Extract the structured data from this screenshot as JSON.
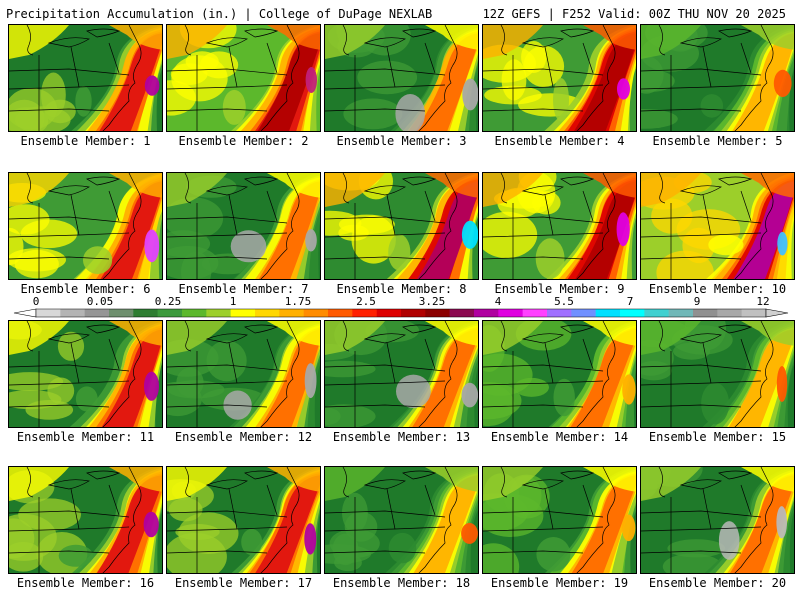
{
  "header": {
    "title": "Precipitation Accumulation (in.) | College of DuPage NEXLAB",
    "run_info": "12Z GEFS | F252 Valid: 00Z THU NOV 20 2025"
  },
  "members": [
    {
      "label": "Ensemble Member: 1",
      "style": "orange-east"
    },
    {
      "label": "Ensemble Member: 2",
      "style": "red-northeast"
    },
    {
      "label": "Ensemble Member: 3",
      "style": "green-gray"
    },
    {
      "label": "Ensemble Member: 4",
      "style": "red-heavy"
    },
    {
      "label": "Ensemble Member: 5",
      "style": "green-heavy"
    },
    {
      "label": "Ensemble Member: 6",
      "style": "yellow-purple"
    },
    {
      "label": "Ensemble Member: 7",
      "style": "green-gray"
    },
    {
      "label": "Ensemble Member: 8",
      "style": "yellow-cyan"
    },
    {
      "label": "Ensemble Member: 9",
      "style": "red-heavy"
    },
    {
      "label": "Ensemble Member: 10",
      "style": "orange-cyan"
    },
    {
      "label": "Ensemble Member: 11",
      "style": "orange-east"
    },
    {
      "label": "Ensemble Member: 12",
      "style": "green-gray"
    },
    {
      "label": "Ensemble Member: 13",
      "style": "green-gray"
    },
    {
      "label": "Ensemble Member: 14",
      "style": "green-yellow"
    },
    {
      "label": "Ensemble Member: 15",
      "style": "green-heavy"
    },
    {
      "label": "Ensemble Member: 16",
      "style": "orange-east"
    },
    {
      "label": "Ensemble Member: 17",
      "style": "orange-east"
    },
    {
      "label": "Ensemble Member: 18",
      "style": "green-heavy"
    },
    {
      "label": "Ensemble Member: 19",
      "style": "green-yellow"
    },
    {
      "label": "Ensemble Member: 20",
      "style": "gray-heavy"
    }
  ],
  "colorbar": {
    "tick_labels": [
      "0",
      "0.05",
      "0.25",
      "1",
      "1.75",
      "2.5",
      "3.25",
      "4",
      "5.5",
      "7",
      "9",
      "12"
    ],
    "colors": [
      "#d8d8d8",
      "#b4b4b4",
      "#969696",
      "#6e8f6e",
      "#2e7d32",
      "#3c9a3c",
      "#5cb82c",
      "#9ccf2a",
      "#ffff00",
      "#ffd700",
      "#ffb000",
      "#ff8c00",
      "#ff5a00",
      "#ff2000",
      "#dd0000",
      "#b00000",
      "#8b0000",
      "#8b0a50",
      "#b000a0",
      "#e000e0",
      "#ff40ff",
      "#a070ff",
      "#7090ff",
      "#00e0ff",
      "#00ffff",
      "#40d0d0",
      "#70b8b8",
      "#909090",
      "#a8a8a8",
      "#c0c0c0"
    ]
  }
}
